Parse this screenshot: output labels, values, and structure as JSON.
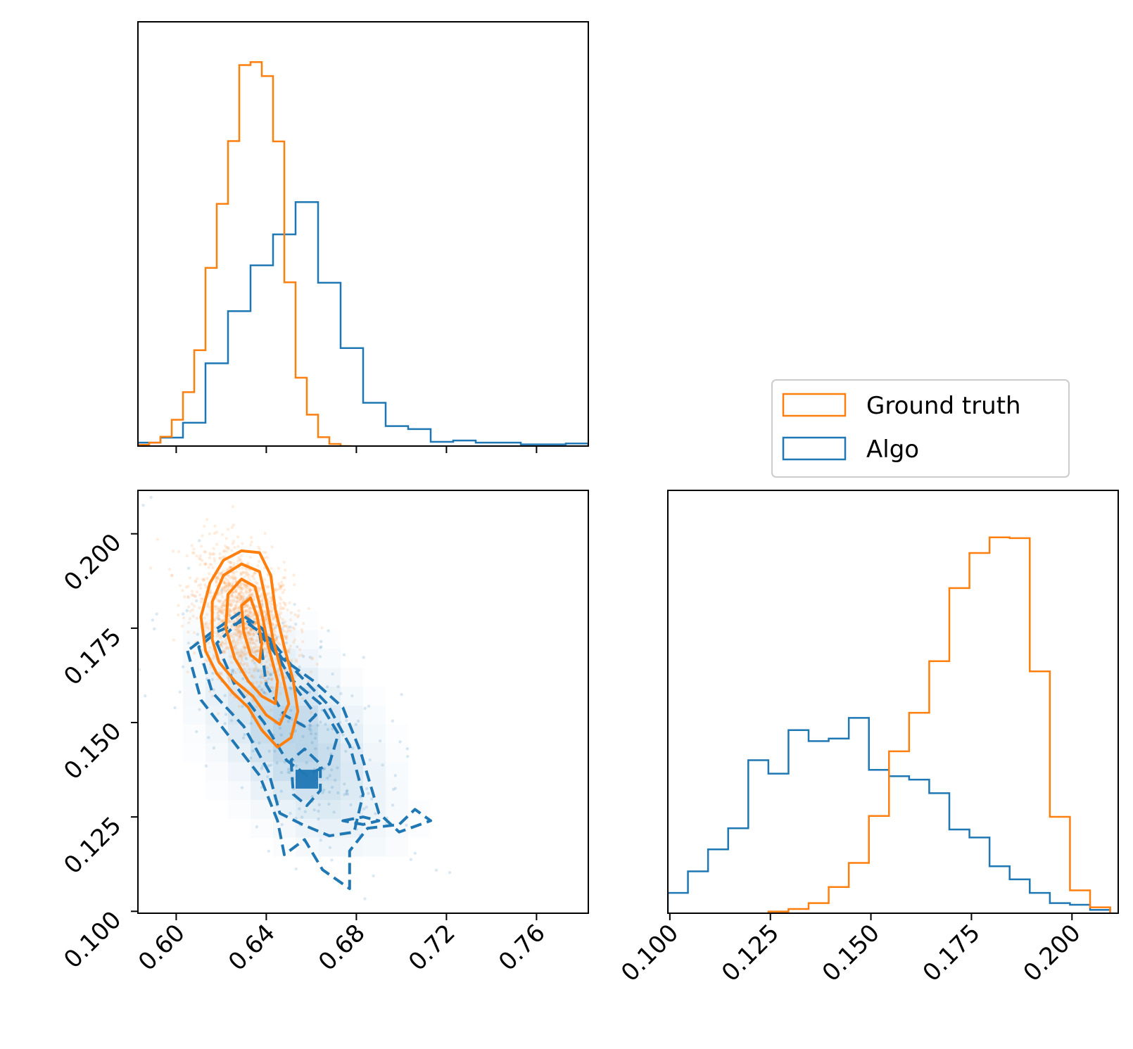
{
  "colors": {
    "ground_truth": "#ff7f0e",
    "algo": "#1f77b4",
    "axis": "#000000"
  },
  "legend": {
    "placement": "above right histogram",
    "entries": [
      "Ground truth",
      "Algo"
    ]
  },
  "chart_data": [
    {
      "type": "histogram",
      "panel": "x-marginal",
      "xlim": [
        0.583,
        0.783
      ],
      "xticks": [
        0.6,
        0.64,
        0.68,
        0.72,
        0.76
      ],
      "xtick_labels_shown": false,
      "ytick_labels_shown": false,
      "series": [
        {
          "name": "Ground truth",
          "bin_edges": [
            0.583,
            0.588,
            0.593,
            0.598,
            0.603,
            0.608,
            0.613,
            0.618,
            0.623,
            0.628,
            0.633,
            0.638,
            0.643,
            0.648,
            0.653,
            0.658,
            0.663,
            0.668,
            0.673,
            0.678
          ],
          "counts": [
            0.003,
            0.008,
            0.022,
            0.062,
            0.127,
            0.226,
            0.42,
            0.571,
            0.719,
            0.898,
            0.905,
            0.872,
            0.718,
            0.386,
            0.161,
            0.074,
            0.021,
            0.005,
            0.0
          ]
        },
        {
          "name": "Algo",
          "bin_edges": [
            0.583,
            0.593,
            0.603,
            0.613,
            0.623,
            0.633,
            0.643,
            0.653,
            0.663,
            0.673,
            0.683,
            0.693,
            0.703,
            0.713,
            0.723,
            0.733,
            0.743,
            0.753,
            0.763,
            0.773,
            0.783
          ],
          "counts": [
            0.008,
            0.02,
            0.055,
            0.195,
            0.318,
            0.426,
            0.499,
            0.575,
            0.385,
            0.231,
            0.102,
            0.047,
            0.04,
            0.01,
            0.013,
            0.008,
            0.008,
            0.004,
            0.004,
            0.006
          ]
        }
      ]
    },
    {
      "type": "scatter",
      "panel": "2d-contour",
      "xlim": [
        0.583,
        0.783
      ],
      "ylim": [
        0.0995,
        0.2115
      ],
      "xticks": [
        0.6,
        0.64,
        0.68,
        0.72,
        0.76
      ],
      "xtick_labels": [
        "0.60",
        "0.64",
        "0.68",
        "0.72",
        "0.76"
      ],
      "yticks": [
        0.1,
        0.125,
        0.15,
        0.175,
        0.2
      ],
      "ytick_labels": [
        "0.100",
        "0.125",
        "0.150",
        "0.175",
        "0.200"
      ],
      "series": [
        {
          "name": "Ground truth",
          "style": "solid contours + scatter",
          "contours": [
            [
              [
                0.613,
                0.169
              ],
              [
                0.611,
                0.178
              ],
              [
                0.615,
                0.187
              ],
              [
                0.621,
                0.193
              ],
              [
                0.629,
                0.1955
              ],
              [
                0.637,
                0.195
              ],
              [
                0.642,
                0.189
              ],
              [
                0.644,
                0.18
              ],
              [
                0.648,
                0.17
              ],
              [
                0.652,
                0.161
              ],
              [
                0.654,
                0.153
              ],
              [
                0.651,
                0.146
              ],
              [
                0.645,
                0.1435
              ],
              [
                0.638,
                0.148
              ],
              [
                0.632,
                0.154
              ],
              [
                0.625,
                0.158
              ],
              [
                0.618,
                0.163
              ],
              [
                0.613,
                0.169
              ]
            ],
            [
              [
                0.616,
                0.172
              ],
              [
                0.616,
                0.182
              ],
              [
                0.621,
                0.189
              ],
              [
                0.629,
                0.192
              ],
              [
                0.637,
                0.19
              ],
              [
                0.64,
                0.182
              ],
              [
                0.643,
                0.172
              ],
              [
                0.647,
                0.163
              ],
              [
                0.65,
                0.155
              ],
              [
                0.646,
                0.1495
              ],
              [
                0.64,
                0.152
              ],
              [
                0.634,
                0.157
              ],
              [
                0.626,
                0.161
              ],
              [
                0.619,
                0.166
              ],
              [
                0.616,
                0.172
              ]
            ],
            [
              [
                0.622,
                0.175
              ],
              [
                0.623,
                0.184
              ],
              [
                0.629,
                0.188
              ],
              [
                0.635,
                0.186
              ],
              [
                0.638,
                0.179
              ],
              [
                0.641,
                0.17
              ],
              [
                0.645,
                0.161
              ],
              [
                0.644,
                0.155
              ],
              [
                0.638,
                0.157
              ],
              [
                0.632,
                0.161
              ],
              [
                0.626,
                0.167
              ],
              [
                0.622,
                0.175
              ]
            ],
            [
              [
                0.63,
                0.174
              ],
              [
                0.629,
                0.181
              ],
              [
                0.633,
                0.183
              ],
              [
                0.636,
                0.178
              ],
              [
                0.638,
                0.171
              ],
              [
                0.637,
                0.166
              ],
              [
                0.633,
                0.168
              ],
              [
                0.63,
                0.174
              ]
            ]
          ]
        },
        {
          "name": "Algo",
          "style": "dashed contours + 2d histogram + scatter",
          "contours": [
            [
              [
                0.605,
                0.169
              ],
              [
                0.611,
                0.156
              ],
              [
                0.624,
                0.146
              ],
              [
                0.637,
                0.136
              ],
              [
                0.645,
                0.124
              ],
              [
                0.648,
                0.115
              ],
              [
                0.657,
                0.119
              ],
              [
                0.665,
                0.111
              ],
              [
                0.677,
                0.106
              ],
              [
                0.677,
                0.116
              ],
              [
                0.685,
                0.122
              ],
              [
                0.699,
                0.123
              ],
              [
                0.706,
                0.127
              ],
              [
                0.713,
                0.124
              ],
              [
                0.699,
                0.121
              ],
              [
                0.69,
                0.126
              ],
              [
                0.682,
                0.142
              ],
              [
                0.674,
                0.154
              ],
              [
                0.661,
                0.161
              ],
              [
                0.647,
                0.167
              ],
              [
                0.638,
                0.175
              ],
              [
                0.628,
                0.179
              ],
              [
                0.616,
                0.174
              ],
              [
                0.605,
                0.169
              ]
            ],
            [
              [
                0.61,
                0.17
              ],
              [
                0.616,
                0.158
              ],
              [
                0.63,
                0.149
              ],
              [
                0.641,
                0.137
              ],
              [
                0.646,
                0.126
              ],
              [
                0.656,
                0.123
              ],
              [
                0.668,
                0.12
              ],
              [
                0.679,
                0.121
              ],
              [
                0.683,
                0.131
              ],
              [
                0.677,
                0.144
              ],
              [
                0.667,
                0.155
              ],
              [
                0.654,
                0.163
              ],
              [
                0.642,
                0.172
              ],
              [
                0.63,
                0.177
              ],
              [
                0.618,
                0.174
              ],
              [
                0.61,
                0.17
              ]
            ],
            [
              [
                0.618,
                0.171
              ],
              [
                0.626,
                0.16
              ],
              [
                0.639,
                0.15
              ],
              [
                0.649,
                0.14
              ],
              [
                0.658,
                0.136
              ],
              [
                0.668,
                0.139
              ],
              [
                0.672,
                0.147
              ],
              [
                0.664,
                0.155
              ],
              [
                0.652,
                0.161
              ],
              [
                0.642,
                0.17
              ],
              [
                0.63,
                0.178
              ],
              [
                0.618,
                0.171
              ]
            ],
            [
              [
                0.637,
                0.174
              ],
              [
                0.64,
                0.16
              ],
              [
                0.648,
                0.152
              ],
              [
                0.657,
                0.149
              ],
              [
                0.662,
                0.152
              ],
              [
                0.652,
                0.16
              ],
              [
                0.645,
                0.168
              ],
              [
                0.637,
                0.174
              ]
            ],
            [
              [
                0.651,
                0.14
              ],
              [
                0.652,
                0.131
              ],
              [
                0.658,
                0.128
              ],
              [
                0.664,
                0.132
              ],
              [
                0.664,
                0.139
              ],
              [
                0.657,
                0.143
              ],
              [
                0.651,
                0.14
              ]
            ],
            [
              [
                0.674,
                0.124
              ],
              [
                0.683,
                0.125
              ],
              [
                0.69,
                0.124
              ],
              [
                0.683,
                0.123
              ],
              [
                0.674,
                0.124
              ]
            ]
          ]
        }
      ]
    },
    {
      "type": "histogram",
      "panel": "y-marginal",
      "xlim": [
        0.0995,
        0.2115
      ],
      "xticks": [
        0.1,
        0.125,
        0.15,
        0.175,
        0.2
      ],
      "xtick_labels": [
        "0.100",
        "0.125",
        "0.150",
        "0.175",
        "0.200"
      ],
      "ytick_labels_shown": false,
      "series": [
        {
          "name": "Ground truth",
          "bin_edges": [
            0.1245,
            0.1295,
            0.1345,
            0.1395,
            0.1445,
            0.1495,
            0.1545,
            0.1595,
            0.1645,
            0.1695,
            0.1745,
            0.1795,
            0.1845,
            0.1895,
            0.1945,
            0.1995,
            0.2045,
            0.2095
          ],
          "counts": [
            0.004,
            0.01,
            0.024,
            0.062,
            0.119,
            0.23,
            0.383,
            0.474,
            0.596,
            0.769,
            0.852,
            0.889,
            0.887,
            0.572,
            0.228,
            0.054,
            0.014
          ]
        },
        {
          "name": "Algo",
          "bin_edges": [
            0.0995,
            0.1045,
            0.1095,
            0.1145,
            0.1195,
            0.1245,
            0.1295,
            0.1345,
            0.1395,
            0.1445,
            0.1495,
            0.1545,
            0.1595,
            0.1645,
            0.1695,
            0.1745,
            0.1795,
            0.1845,
            0.1895,
            0.1945,
            0.1995,
            0.2045,
            0.2095
          ],
          "counts": [
            0.048,
            0.099,
            0.151,
            0.201,
            0.362,
            0.33,
            0.433,
            0.407,
            0.413,
            0.462,
            0.339,
            0.324,
            0.316,
            0.284,
            0.198,
            0.179,
            0.111,
            0.08,
            0.048,
            0.024,
            0.02,
            0.008
          ]
        }
      ]
    }
  ]
}
